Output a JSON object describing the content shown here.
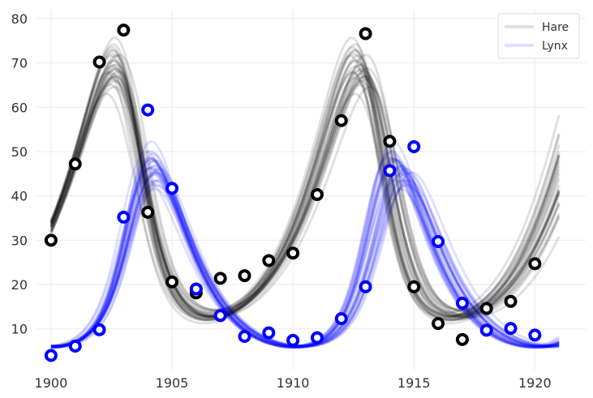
{
  "chart_data": {
    "type": "scatter",
    "title": "",
    "xlabel": "",
    "ylabel": "",
    "xlim": [
      1899.4,
      1922.1
    ],
    "ylim": [
      0.8,
      82
    ],
    "grid": true,
    "legend_position": "top-right",
    "x_ticks": [
      1900,
      1905,
      1910,
      1915,
      1920
    ],
    "x_tick_labels": [
      "1900",
      "1905",
      "1910",
      "1915",
      "1920"
    ],
    "y_ticks": [
      10,
      20,
      30,
      40,
      50,
      60,
      70,
      80
    ],
    "y_tick_labels": [
      "10",
      "20",
      "30",
      "40",
      "50",
      "60",
      "70",
      "80"
    ],
    "series": [
      {
        "name": "Hare",
        "color": "#000000",
        "x": [
          1900,
          1901,
          1902,
          1903,
          1904,
          1905,
          1906,
          1907,
          1908,
          1909,
          1910,
          1911,
          1912,
          1913,
          1914,
          1915,
          1916,
          1917,
          1918,
          1919,
          1920
        ],
        "y": [
          30.0,
          47.2,
          70.2,
          77.4,
          36.3,
          20.6,
          18.1,
          21.4,
          22.0,
          25.4,
          27.1,
          40.3,
          57.0,
          76.6,
          52.3,
          19.5,
          11.2,
          7.6,
          14.6,
          16.2,
          24.7
        ]
      },
      {
        "name": "Lynx",
        "color": "#0000ff",
        "x": [
          1900,
          1901,
          1902,
          1903,
          1904,
          1905,
          1906,
          1907,
          1908,
          1909,
          1910,
          1911,
          1912,
          1913,
          1914,
          1915,
          1916,
          1917,
          1918,
          1919,
          1920
        ],
        "y": [
          4.0,
          6.1,
          9.8,
          35.2,
          59.4,
          41.7,
          19.0,
          13.0,
          8.3,
          9.1,
          7.4,
          8.0,
          12.3,
          19.5,
          45.7,
          51.1,
          29.7,
          15.8,
          9.7,
          10.1,
          8.6
        ]
      }
    ],
    "posterior_curves": {
      "x_range": [
        1900,
        1921
      ],
      "samples_per_series": 30,
      "line_alpha": 0.12
    }
  }
}
